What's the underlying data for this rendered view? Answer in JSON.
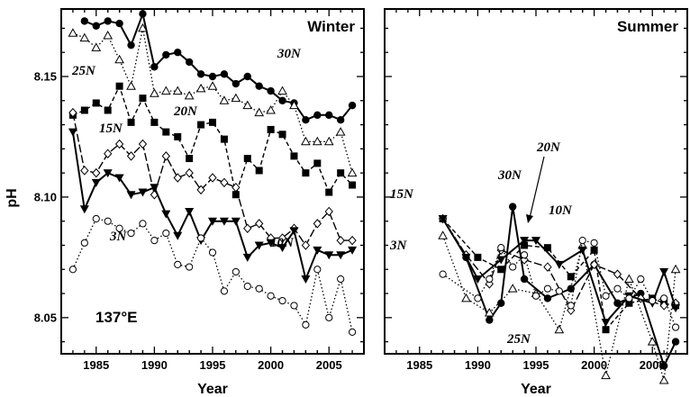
{
  "chart_data": [
    {
      "type": "line",
      "title": "Winter",
      "annotation": "137°E",
      "xlabel": "Year",
      "ylabel": "pH",
      "xlim": [
        1982,
        2008
      ],
      "ylim": [
        8.035,
        8.178
      ],
      "xticks": [
        "1985",
        "1990",
        "1995",
        "2000",
        "2005"
      ],
      "yticks": [
        "8.05",
        "8.10",
        "8.15"
      ],
      "series": [
        {
          "name": "30N",
          "marker": "filled-circle",
          "dash": "solid",
          "x": [
            1984,
            1985,
            1986,
            1987,
            1988,
            1989,
            1990,
            1991,
            1992,
            1993,
            1994,
            1995,
            1996,
            1997,
            1998,
            1999,
            2000,
            2001,
            2002,
            2003,
            2004,
            2005,
            2006,
            2007
          ],
          "y": [
            8.173,
            8.171,
            8.173,
            8.172,
            8.163,
            8.176,
            8.154,
            8.159,
            8.16,
            8.156,
            8.151,
            8.15,
            8.151,
            8.147,
            8.15,
            8.146,
            8.144,
            8.14,
            8.139,
            8.132,
            8.134,
            8.134,
            8.132,
            8.138
          ]
        },
        {
          "name": "25N",
          "marker": "open-triangle",
          "dash": "dotted",
          "x": [
            1983,
            1984,
            1985,
            1986,
            1987,
            1988,
            1989,
            1990,
            1991,
            1992,
            1993,
            1994,
            1995,
            1996,
            1997,
            1998,
            1999,
            2000,
            2001,
            2002,
            2003,
            2004,
            2005,
            2006,
            2007
          ],
          "y": [
            8.168,
            8.166,
            8.162,
            8.167,
            8.157,
            8.146,
            8.17,
            8.143,
            8.144,
            8.144,
            8.142,
            8.145,
            8.146,
            8.14,
            8.141,
            8.138,
            8.135,
            8.136,
            8.144,
            8.138,
            8.123,
            8.123,
            8.123,
            8.127,
            8.11
          ]
        },
        {
          "name": "20N",
          "marker": "filled-square",
          "dash": "dashed",
          "x": [
            1983,
            1984,
            1985,
            1986,
            1987,
            1988,
            1989,
            1990,
            1991,
            1992,
            1993,
            1994,
            1995,
            1996,
            1997,
            1998,
            1999,
            2000,
            2001,
            2002,
            2003,
            2004,
            2005,
            2006,
            2007
          ],
          "y": [
            8.134,
            8.136,
            8.139,
            8.136,
            8.146,
            8.131,
            8.141,
            8.131,
            8.127,
            8.125,
            8.116,
            8.13,
            8.131,
            8.124,
            8.101,
            8.116,
            8.111,
            8.128,
            8.126,
            8.117,
            8.11,
            8.114,
            8.102,
            8.11,
            8.105
          ]
        },
        {
          "name": "15N",
          "marker": "open-diamond",
          "dash": "longdash",
          "x": [
            1983,
            1984,
            1985,
            1986,
            1987,
            1988,
            1989,
            1990,
            1991,
            1992,
            1993,
            1994,
            1995,
            1996,
            1997,
            1998,
            1999,
            2000,
            2001,
            2002,
            2003,
            2004,
            2005,
            2006,
            2007
          ],
          "y": [
            8.135,
            8.111,
            8.11,
            8.118,
            8.122,
            8.117,
            8.122,
            8.101,
            8.117,
            8.108,
            8.11,
            8.103,
            8.108,
            8.106,
            8.104,
            8.087,
            8.089,
            8.083,
            8.083,
            8.087,
            8.08,
            8.089,
            8.094,
            8.082,
            8.082
          ]
        },
        {
          "name": "10N",
          "marker": "filled-triangle-down",
          "dash": "solid",
          "x": [
            1983,
            1984,
            1985,
            1986,
            1987,
            1988,
            1989,
            1990,
            1991,
            1992,
            1993,
            1994,
            1995,
            1996,
            1997,
            1998,
            1999,
            2000,
            2001,
            2002,
            2003,
            2004,
            2005,
            2006,
            2007
          ],
          "y": [
            8.127,
            8.095,
            8.106,
            8.11,
            8.108,
            8.101,
            8.102,
            8.104,
            8.093,
            8.084,
            8.094,
            8.082,
            8.09,
            8.09,
            8.09,
            8.075,
            8.08,
            8.081,
            8.079,
            8.086,
            8.066,
            8.078,
            8.076,
            8.076,
            8.078
          ]
        },
        {
          "name": "3N",
          "marker": "open-circle",
          "dash": "dotted",
          "x": [
            1983,
            1984,
            1985,
            1986,
            1987,
            1988,
            1989,
            1990,
            1991,
            1992,
            1993,
            1994,
            1995,
            1996,
            1997,
            1998,
            1999,
            2000,
            2001,
            2002,
            2003,
            2004,
            2005,
            2006,
            2007
          ],
          "y": [
            8.07,
            8.081,
            8.091,
            8.09,
            8.087,
            8.085,
            8.089,
            8.082,
            8.085,
            8.072,
            8.071,
            8.083,
            8.077,
            8.061,
            8.069,
            8.063,
            8.062,
            8.059,
            8.057,
            8.055,
            8.047,
            8.07,
            8.05,
            8.066,
            8.044
          ]
        }
      ]
    },
    {
      "type": "line",
      "title": "Summer",
      "xlabel": "Year",
      "xlim": [
        1982,
        2008
      ],
      "ylim": [
        8.035,
        8.178
      ],
      "xticks": [
        "1985",
        "1990",
        "1995",
        "2000",
        "2005"
      ],
      "series": [
        {
          "name": "30N",
          "marker": "filled-circle",
          "dash": "solid",
          "x": [
            1989,
            1991,
            1992,
            1993,
            1994,
            1996,
            1998,
            2000,
            2002,
            2004,
            2006,
            2007
          ],
          "y": [
            8.075,
            8.049,
            8.056,
            8.096,
            8.066,
            8.058,
            8.062,
            8.072,
            8.056,
            8.06,
            8.03,
            8.04
          ]
        },
        {
          "name": "25N",
          "marker": "open-triangle",
          "dash": "dotted",
          "x": [
            1987,
            1989,
            1991,
            1993,
            1995,
            1997,
            1999,
            2001,
            2003,
            2005,
            2006,
            2007
          ],
          "y": [
            8.084,
            8.058,
            8.052,
            8.062,
            8.06,
            8.045,
            8.08,
            8.026,
            8.066,
            8.04,
            8.024,
            8.07
          ]
        },
        {
          "name": "20N",
          "marker": "filled-square",
          "dash": "dashed",
          "x": [
            1987,
            1990,
            1992,
            1994,
            1996,
            1998,
            2000,
            2001,
            2003,
            2005,
            2006,
            2007
          ],
          "y": [
            8.091,
            8.075,
            8.07,
            8.08,
            8.079,
            8.067,
            8.078,
            8.045,
            8.056,
            8.058,
            8.056,
            8.055
          ]
        },
        {
          "name": "15N",
          "marker": "open-diamond",
          "dash": "longdash",
          "x": [
            1987,
            1989,
            1991,
            1992,
            1994,
            1996,
            1998,
            2000,
            2002,
            2004,
            2006,
            2007
          ],
          "y": [
            8.091,
            8.076,
            8.064,
            8.078,
            8.074,
            8.071,
            8.053,
            8.072,
            8.068,
            8.058,
            8.055,
            8.056
          ]
        },
        {
          "name": "10N",
          "marker": "filled-triangle-down",
          "dash": "solid",
          "x": [
            1987,
            1989,
            1990,
            1992,
            1994,
            1995,
            1997,
            1999,
            2001,
            2003,
            2005,
            2006,
            2007
          ],
          "y": [
            8.091,
            8.075,
            8.066,
            8.074,
            8.082,
            8.082,
            8.072,
            8.078,
            8.048,
            8.059,
            8.056,
            8.069,
            8.054
          ]
        },
        {
          "name": "3N",
          "marker": "open-circle",
          "dash": "dotted",
          "x": [
            1987,
            1990,
            1991,
            1992,
            1993,
            1994,
            1995,
            1996,
            1997,
            1998,
            1999,
            2000,
            2001,
            2002,
            2003,
            2004,
            2005,
            2006,
            2007
          ],
          "y": [
            8.068,
            8.058,
            8.066,
            8.079,
            8.071,
            8.076,
            8.059,
            8.062,
            8.061,
            8.055,
            8.082,
            8.081,
            8.059,
            8.062,
            8.058,
            8.066,
            8.057,
            8.058,
            8.046
          ]
        }
      ]
    }
  ]
}
